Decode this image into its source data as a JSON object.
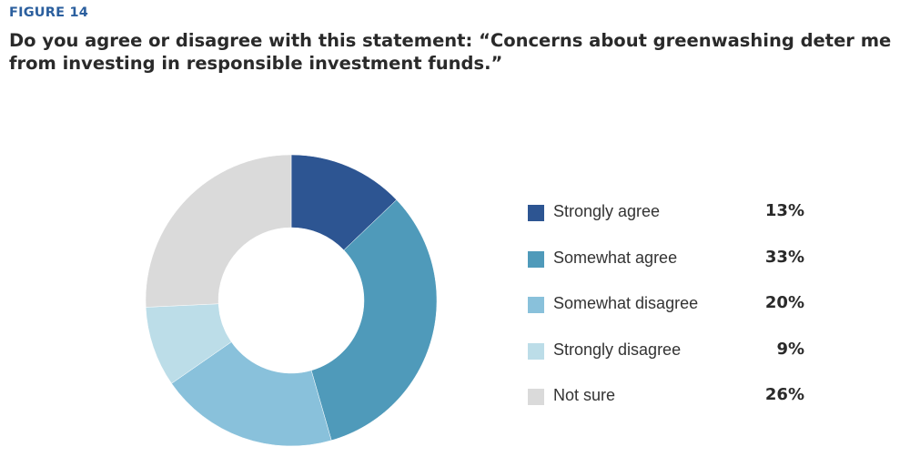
{
  "figure_label": "FIGURE  14",
  "chart_data": {
    "type": "pie",
    "title": "Do you agree or disagree with this statement: “Concerns about greenwashing deter me from investing in responsible investment funds.”",
    "categories": [
      "Strongly agree",
      "Somewhat agree",
      "Somewhat disagree",
      "Strongly disagree",
      "Not sure"
    ],
    "values": [
      13,
      33,
      20,
      9,
      26
    ],
    "value_labels": [
      "13%",
      "33%",
      "20%",
      "9%",
      "26%"
    ],
    "colors": [
      "#2d5592",
      "#4f9aba",
      "#89c1db",
      "#bcdde8",
      "#dadada"
    ],
    "donut": true,
    "legend_position": "right"
  }
}
